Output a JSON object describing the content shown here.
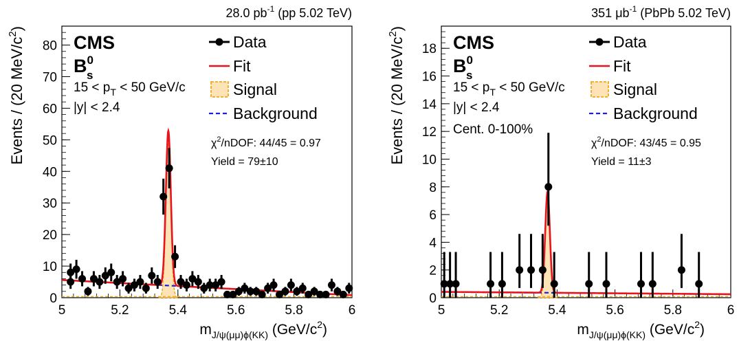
{
  "chart_data": [
    {
      "type": "scatter",
      "lumi_label": "28.0 pb",
      "lumi_unit_exp": "-1",
      "lumi_suffix": " (pp 5.02 TeV)",
      "experiment": "CMS",
      "particle": "B",
      "particle_sup": "0",
      "particle_sub": "s",
      "cut_pt_left": "15 < p",
      "cut_pt_sub": "T",
      "cut_pt_right": " < 50 GeV/c",
      "cut_y": "|y| < 2.4",
      "cut_cent": "",
      "chi2_prefix": "χ",
      "chi2_exp": "2",
      "chi2_rest": "/nDOF: 44/45 = 0.97",
      "yield_text": "Yield = 79±10",
      "legend": [
        "Data",
        "Fit",
        "Signal",
        "Background"
      ],
      "xlabel_main": "m",
      "xlabel_sub": "J/ψ(μμ)ϕ(KK)",
      "xlabel_unit": " (GeV/c",
      "xlabel_unit_exp": "2",
      "xlabel_close": ")",
      "ylabel_main": "Events / (20 MeV/c",
      "ylabel_exp": "2",
      "ylabel_close": ")",
      "xlim": [
        5,
        6
      ],
      "ylim": [
        0,
        86
      ],
      "xticks": [
        5,
        5.2,
        5.4,
        5.6,
        5.8,
        6
      ],
      "yticks": [
        0,
        10,
        20,
        30,
        40,
        50,
        60,
        70,
        80
      ],
      "background": {
        "y_at_xmin": 5.6,
        "y_at_xmax": 0.8
      },
      "signal": {
        "peak": 49,
        "mean": 5.367,
        "sigma": 0.0085
      },
      "points": [
        {
          "x": 5.03,
          "y": 5,
          "err": 2.2
        },
        {
          "x": 5.03,
          "y": 8,
          "err": 2.8
        },
        {
          "x": 5.05,
          "y": 9,
          "err": 3
        },
        {
          "x": 5.07,
          "y": 6,
          "err": 2.4
        },
        {
          "x": 5.09,
          "y": 2,
          "err": 1.4
        },
        {
          "x": 5.11,
          "y": 6,
          "err": 2.4
        },
        {
          "x": 5.13,
          "y": 5,
          "err": 2.2
        },
        {
          "x": 5.15,
          "y": 7,
          "err": 2.6
        },
        {
          "x": 5.17,
          "y": 8,
          "err": 2.8
        },
        {
          "x": 5.19,
          "y": 5,
          "err": 2.2
        },
        {
          "x": 5.21,
          "y": 6,
          "err": 2.4
        },
        {
          "x": 5.23,
          "y": 3,
          "err": 1.7
        },
        {
          "x": 5.25,
          "y": 4,
          "err": 2
        },
        {
          "x": 5.27,
          "y": 5,
          "err": 2.2
        },
        {
          "x": 5.29,
          "y": 3,
          "err": 1.7
        },
        {
          "x": 5.31,
          "y": 7,
          "err": 2.6
        },
        {
          "x": 5.33,
          "y": 5,
          "err": 2.2
        },
        {
          "x": 5.35,
          "y": 32,
          "err": 5.7
        },
        {
          "x": 5.37,
          "y": 41,
          "err": 6.4
        },
        {
          "x": 5.39,
          "y": 13,
          "err": 3.6
        },
        {
          "x": 5.41,
          "y": 5,
          "err": 2.2
        },
        {
          "x": 5.43,
          "y": 4,
          "err": 2
        },
        {
          "x": 5.45,
          "y": 6,
          "err": 2.4
        },
        {
          "x": 5.47,
          "y": 5,
          "err": 2.2
        },
        {
          "x": 5.49,
          "y": 3,
          "err": 1.7
        },
        {
          "x": 5.51,
          "y": 4,
          "err": 2
        },
        {
          "x": 5.53,
          "y": 4,
          "err": 2
        },
        {
          "x": 5.55,
          "y": 5,
          "err": 2.2
        },
        {
          "x": 5.57,
          "y": 1,
          "err": 1
        },
        {
          "x": 5.59,
          "y": 1,
          "err": 1
        },
        {
          "x": 5.61,
          "y": 2,
          "err": 1.4
        },
        {
          "x": 5.63,
          "y": 3,
          "err": 1.7
        },
        {
          "x": 5.65,
          "y": 2,
          "err": 1.4
        },
        {
          "x": 5.67,
          "y": 2,
          "err": 1.4
        },
        {
          "x": 5.69,
          "y": 1,
          "err": 1
        },
        {
          "x": 5.71,
          "y": 3,
          "err": 1.7
        },
        {
          "x": 5.73,
          "y": 4,
          "err": 2
        },
        {
          "x": 5.75,
          "y": 1,
          "err": 1
        },
        {
          "x": 5.77,
          "y": 2,
          "err": 1.4
        },
        {
          "x": 5.79,
          "y": 4,
          "err": 2
        },
        {
          "x": 5.81,
          "y": 2,
          "err": 1.4
        },
        {
          "x": 5.83,
          "y": 3,
          "err": 1.7
        },
        {
          "x": 5.85,
          "y": 1,
          "err": 1
        },
        {
          "x": 5.87,
          "y": 2,
          "err": 1.4
        },
        {
          "x": 5.89,
          "y": 1,
          "err": 1
        },
        {
          "x": 5.91,
          "y": 1,
          "err": 1
        },
        {
          "x": 5.93,
          "y": 4,
          "err": 2
        },
        {
          "x": 5.95,
          "y": 2,
          "err": 1.4
        },
        {
          "x": 5.97,
          "y": 1,
          "err": 1
        },
        {
          "x": 5.99,
          "y": 3,
          "err": 1.7
        }
      ]
    },
    {
      "type": "scatter",
      "lumi_label": "351 μb",
      "lumi_unit_exp": "-1",
      "lumi_suffix": " (PbPb 5.02 TeV)",
      "experiment": "CMS",
      "particle": "B",
      "particle_sup": "0",
      "particle_sub": "s",
      "cut_pt_left": "15 < p",
      "cut_pt_sub": "T",
      "cut_pt_right": " < 50 GeV/c",
      "cut_y": "|y| < 2.4",
      "cut_cent": "Cent. 0-100%",
      "chi2_prefix": "χ",
      "chi2_exp": "2",
      "chi2_rest": "/nDOF: 43/45 = 0.95",
      "yield_text": "Yield = 11±3",
      "legend": [
        "Data",
        "Fit",
        "Signal",
        "Background"
      ],
      "xlabel_main": "m",
      "xlabel_sub": "J/ψ(μμ)ϕ(KK)",
      "xlabel_unit": " (GeV/c",
      "xlabel_unit_exp": "2",
      "xlabel_close": ")",
      "ylabel_main": "Events / (20 MeV/c",
      "ylabel_exp": "2",
      "ylabel_close": ")",
      "xlim": [
        5,
        6
      ],
      "ylim": [
        0,
        19.6
      ],
      "xticks": [
        5,
        5.2,
        5.4,
        5.6,
        5.8,
        6
      ],
      "yticks": [
        0,
        2,
        4,
        6,
        8,
        10,
        12,
        14,
        16,
        18
      ],
      "background": {
        "y_at_xmin": 0.42,
        "y_at_xmax": 0.25
      },
      "signal": {
        "peak": 7.3,
        "mean": 5.367,
        "sigma": 0.008
      },
      "points": [
        {
          "x": 5.01,
          "y": 1,
          "err_up": 2.3,
          "err_dn": 1
        },
        {
          "x": 5.03,
          "y": 1,
          "err_up": 2.3,
          "err_dn": 1
        },
        {
          "x": 5.05,
          "y": 1,
          "err_up": 2.3,
          "err_dn": 1
        },
        {
          "x": 5.17,
          "y": 1,
          "err_up": 2.3,
          "err_dn": 1
        },
        {
          "x": 5.21,
          "y": 1,
          "err_up": 2.3,
          "err_dn": 1
        },
        {
          "x": 5.27,
          "y": 2,
          "err_up": 2.6,
          "err_dn": 1.3
        },
        {
          "x": 5.31,
          "y": 2,
          "err_up": 2.6,
          "err_dn": 1.3
        },
        {
          "x": 5.35,
          "y": 2,
          "err_up": 2.6,
          "err_dn": 1.3
        },
        {
          "x": 5.37,
          "y": 8,
          "err_up": 3.9,
          "err_dn": 2.8
        },
        {
          "x": 5.39,
          "y": 1,
          "err_up": 2.3,
          "err_dn": 1
        },
        {
          "x": 5.51,
          "y": 1,
          "err_up": 2.3,
          "err_dn": 1
        },
        {
          "x": 5.57,
          "y": 1,
          "err_up": 2.3,
          "err_dn": 1
        },
        {
          "x": 5.69,
          "y": 1,
          "err_up": 2.3,
          "err_dn": 1
        },
        {
          "x": 5.73,
          "y": 1,
          "err_up": 2.3,
          "err_dn": 1
        },
        {
          "x": 5.83,
          "y": 2,
          "err_up": 2.6,
          "err_dn": 1.3
        },
        {
          "x": 5.89,
          "y": 1,
          "err_up": 2.3,
          "err_dn": 1
        }
      ]
    }
  ]
}
